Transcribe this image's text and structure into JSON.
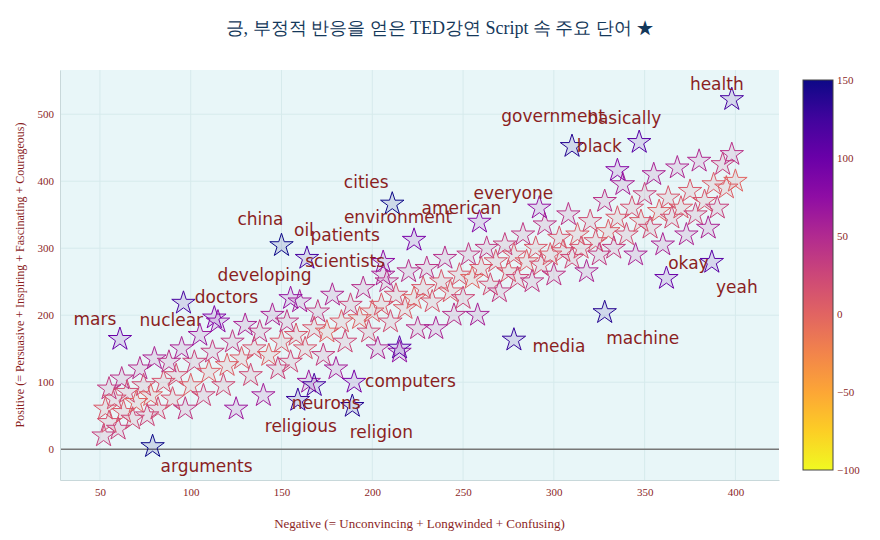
{
  "chart_data": {
    "type": "scatter",
    "title": "긍, 부정적 반응을 얻은 TED강연 Script 속 주요 단어 ★",
    "x_label": "Negative (= Unconvincing + Longwinded + Confusing)",
    "y_label": "Positive (= Persuasive + Inspiring + Fascinating + Courageous)",
    "marker": "star",
    "grid": true,
    "xlim": [
      28,
      424
    ],
    "ylim": [
      -46,
      566
    ],
    "xticks": [
      50,
      100,
      150,
      200,
      250,
      300,
      350,
      400
    ],
    "yticks": [
      0,
      100,
      200,
      300,
      400,
      500
    ],
    "colorbar": {
      "range": [
        -100,
        150
      ],
      "ticks": [
        {
          "value": -100,
          "label": "−100"
        },
        {
          "value": -50,
          "label": "−50"
        },
        0,
        50,
        100,
        150
      ]
    },
    "x": [
      52,
      53,
      55,
      55,
      58,
      60,
      62,
      63,
      65,
      68,
      70,
      72,
      74,
      76,
      78,
      80,
      82,
      85,
      88,
      90,
      92,
      95,
      97,
      100,
      102,
      105,
      107,
      110,
      112,
      115,
      118,
      120,
      123,
      125,
      128,
      130,
      133,
      135,
      138,
      140,
      143,
      145,
      148,
      150,
      153,
      155,
      158,
      160,
      163,
      165,
      168,
      170,
      173,
      175,
      178,
      180,
      183,
      185,
      188,
      190,
      193,
      195,
      198,
      200,
      203,
      205,
      208,
      210,
      213,
      215,
      218,
      220,
      223,
      225,
      228,
      230,
      233,
      235,
      238,
      240,
      243,
      245,
      248,
      250,
      253,
      255,
      258,
      260,
      263,
      265,
      268,
      270,
      273,
      275,
      278,
      280,
      283,
      285,
      288,
      290,
      293,
      295,
      298,
      300,
      303,
      305,
      308,
      310,
      313,
      315,
      318,
      320,
      323,
      325,
      328,
      330,
      333,
      335,
      338,
      340,
      343,
      345,
      348,
      350,
      353,
      355,
      358,
      360,
      363,
      365,
      368,
      370,
      373,
      375,
      378,
      380,
      383,
      385,
      388,
      390,
      393,
      395,
      398,
      400,
      398,
      310,
      347,
      335,
      292,
      259,
      211,
      223,
      150,
      164,
      206,
      206,
      155,
      96,
      61,
      113,
      215,
      168,
      159,
      189,
      79,
      278,
      328,
      362,
      387
    ],
    "values": [
      20,
      60,
      90,
      40,
      75,
      30,
      105,
      55,
      85,
      45,
      70,
      120,
      95,
      50,
      80,
      135,
      60,
      100,
      130,
      75,
      110,
      150,
      60,
      95,
      130,
      170,
      80,
      115,
      145,
      190,
      95,
      125,
      160,
      60,
      135,
      185,
      110,
      150,
      175,
      80,
      140,
      200,
      120,
      160,
      190,
      130,
      170,
      220,
      150,
      100,
      180,
      205,
      140,
      175,
      230,
      120,
      190,
      160,
      215,
      100,
      195,
      240,
      175,
      205,
      150,
      215,
      250,
      190,
      230,
      145,
      210,
      265,
      225,
      180,
      240,
      270,
      220,
      180,
      250,
      285,
      235,
      200,
      260,
      225,
      290,
      255,
      200,
      270,
      300,
      245,
      280,
      235,
      305,
      265,
      290,
      255,
      320,
      280,
      250,
      300,
      275,
      335,
      290,
      260,
      315,
      295,
      350,
      285,
      320,
      300,
      265,
      340,
      310,
      290,
      370,
      325,
      300,
      345,
      395,
      320,
      360,
      290,
      340,
      380,
      330,
      410,
      355,
      305,
      375,
      345,
      420,
      360,
      320,
      385,
      350,
      430,
      370,
      330,
      395,
      360,
      425,
      390,
      440,
      400,
      522,
      452,
      458,
      416,
      360,
      339,
      366,
      312,
      304,
      285,
      279,
      260,
      225,
      218,
      164,
      196,
      151,
      95,
      73,
      64,
      4,
      163,
      204,
      255,
      279
    ],
    "color_values": [
      30,
      10,
      35,
      15,
      17,
      30,
      43,
      8,
      20,
      23,
      0,
      48,
      21,
      26,
      2,
      55,
      22,
      15,
      42,
      15,
      18,
      55,
      37,
      5,
      28,
      65,
      27,
      5,
      33,
      75,
      23,
      5,
      37,
      65,
      7,
      55,
      23,
      15,
      37,
      60,
      3,
      55,
      28,
      10,
      37,
      25,
      12,
      60,
      13,
      65,
      12,
      35,
      33,
      0,
      52,
      60,
      7,
      25,
      27,
      90,
      2,
      45,
      23,
      5,
      53,
      10,
      42,
      20,
      17,
      70,
      8,
      45,
      2,
      45,
      12,
      40,
      13,
      55,
      12,
      45,
      8,
      45,
      12,
      25,
      37,
      0,
      58,
      10,
      37,
      20,
      12,
      35,
      32,
      10,
      12,
      25,
      37,
      5,
      38,
      10,
      18,
      40,
      8,
      40,
      12,
      10,
      42,
      25,
      7,
      15,
      53,
      20,
      13,
      35,
      42,
      5,
      33,
      10,
      57,
      20,
      17,
      55,
      8,
      30,
      23,
      55,
      3,
      55,
      12,
      20,
      52,
      10,
      53,
      10,
      28,
      50,
      13,
      55,
      7,
      30,
      32,
      5,
      42,
      0,
      120,
      140,
      110,
      80,
      70,
      80,
      150,
      90,
      150,
      120,
      75,
      55,
      70,
      120,
      100,
      85,
      110,
      120,
      130,
      140,
      150,
      130,
      140,
      100,
      110
    ],
    "annotations": [
      {
        "text": "health",
        "x": 398,
        "y": 522
      },
      {
        "text": "government",
        "x": 310,
        "y": 452
      },
      {
        "text": "basically",
        "x": 347,
        "y": 458
      },
      {
        "text": "black",
        "x": 335,
        "y": 416
      },
      {
        "text": "everyone",
        "x": 292,
        "y": 360
      },
      {
        "text": "american",
        "x": 259,
        "y": 339
      },
      {
        "text": "cities",
        "x": 211,
        "y": 366
      },
      {
        "text": "environment",
        "x": 223,
        "y": 312
      },
      {
        "text": "china",
        "x": 150,
        "y": 304
      },
      {
        "text": "oil",
        "x": 164,
        "y": 285
      },
      {
        "text": "patients",
        "x": 206,
        "y": 279
      },
      {
        "text": "scientists",
        "x": 206,
        "y": 260
      },
      {
        "text": "developing",
        "x": 155,
        "y": 225
      },
      {
        "text": "doctors",
        "x": 96,
        "y": 218
      },
      {
        "text": "mars",
        "x": 61,
        "y": 164
      },
      {
        "text": "nuclear",
        "x": 113,
        "y": 196
      },
      {
        "text": "computers",
        "x": 215,
        "y": 151
      },
      {
        "text": "neurons",
        "x": 168,
        "y": 95
      },
      {
        "text": "religious",
        "x": 159,
        "y": 73
      },
      {
        "text": "religion",
        "x": 189,
        "y": 64
      },
      {
        "text": "arguments",
        "x": 79,
        "y": 4
      },
      {
        "text": "media",
        "x": 278,
        "y": 163
      },
      {
        "text": "machine",
        "x": 328,
        "y": 204
      },
      {
        "text": "okay",
        "x": 362,
        "y": 255
      },
      {
        "text": "yeah",
        "x": 387,
        "y": 279
      }
    ]
  }
}
